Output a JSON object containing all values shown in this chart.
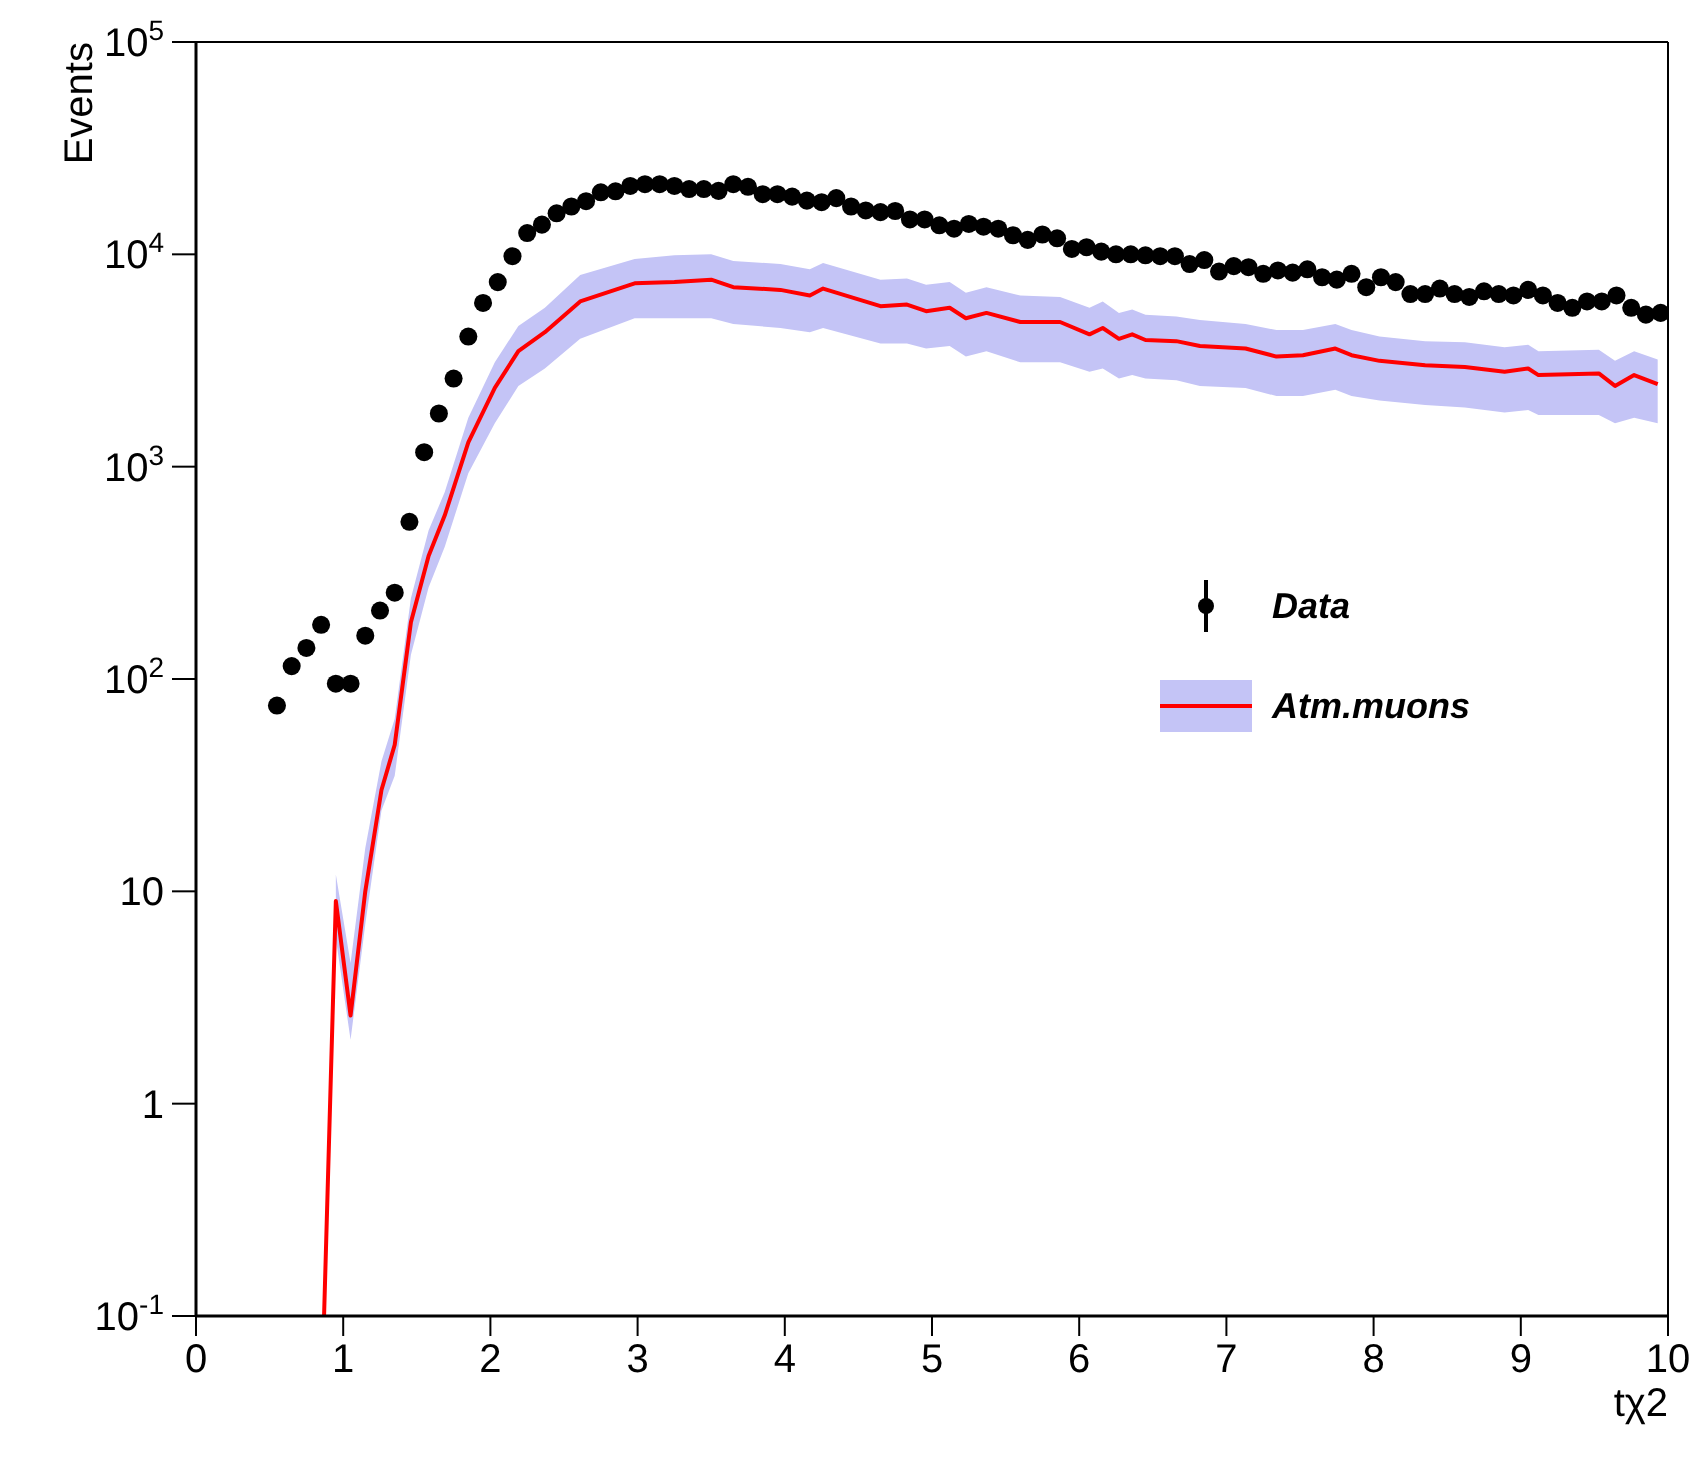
{
  "chart_data": {
    "type": "scatter",
    "xlabel": "tχ2",
    "ylabel": "Events",
    "log": true,
    "legend": "right",
    "xlim": [
      0,
      10
    ],
    "xticks": [
      0,
      1,
      2,
      3,
      4,
      5,
      6,
      7,
      8,
      9,
      10
    ],
    "ylim": [
      0.1,
      100000
    ],
    "yticks": [
      {
        "value": 0.1,
        "label": "10$^{-1}$"
      },
      1,
      10,
      {
        "value": 100,
        "label": "10$^{2}$"
      },
      {
        "value": 1000,
        "label": "10$^{3}$"
      },
      {
        "value": 10000,
        "label": "10$^{4}$"
      },
      {
        "value": 100000,
        "label": "10$^{5}$"
      }
    ],
    "series": [
      {
        "name": "Data",
        "marker": "circle",
        "color": "#000000",
        "x": [
          0.55,
          0.65,
          0.75,
          0.85,
          0.95,
          1.05,
          1.15,
          1.25,
          1.35,
          1.45,
          1.55,
          1.65,
          1.75,
          1.85,
          1.95,
          2.05,
          2.15,
          2.25,
          2.35,
          2.45,
          2.55,
          2.65,
          2.75,
          2.85,
          2.95,
          3.05,
          3.15,
          3.25,
          3.35,
          3.45,
          3.55,
          3.65,
          3.75,
          3.85,
          3.95,
          4.05,
          4.15,
          4.25,
          4.35,
          4.45,
          4.55,
          4.65,
          4.75,
          4.85,
          4.95,
          5.05,
          5.15,
          5.25,
          5.35,
          5.45,
          5.55,
          5.65,
          5.75,
          5.85,
          5.95,
          6.05,
          6.15,
          6.25,
          6.35,
          6.45,
          6.55,
          6.65,
          6.75,
          6.85,
          6.95,
          7.05,
          7.15,
          7.25,
          7.35,
          7.45,
          7.55,
          7.65,
          7.75,
          7.85,
          7.95,
          8.05,
          8.15,
          8.25,
          8.35,
          8.45,
          8.55,
          8.65,
          8.75,
          8.85,
          8.95,
          9.05,
          9.15,
          9.25,
          9.35,
          9.45,
          9.55,
          9.65,
          9.75,
          9.85,
          9.95
        ],
        "values": [
          75,
          115,
          140,
          180,
          95,
          95,
          160,
          210,
          255,
          550,
          1170,
          1780,
          2600,
          4100,
          5900,
          7400,
          9800,
          12600,
          13800,
          15600,
          16800,
          17800,
          19600,
          19800,
          21000,
          21400,
          21400,
          21000,
          20300,
          20300,
          19900,
          21400,
          20800,
          19200,
          19200,
          18700,
          17900,
          17600,
          18400,
          16800,
          16100,
          15800,
          16000,
          14600,
          14600,
          13700,
          13200,
          13900,
          13500,
          13200,
          12300,
          11700,
          12400,
          11900,
          10600,
          10800,
          10300,
          10000,
          10000,
          9900,
          9800,
          9800,
          9000,
          9400,
          8300,
          8800,
          8700,
          8100,
          8400,
          8200,
          8500,
          7800,
          7600,
          8100,
          7000,
          7800,
          7400,
          6500,
          6500,
          6900,
          6500,
          6300,
          6700,
          6500,
          6400,
          6800,
          6400,
          5900,
          5600,
          6000,
          6000,
          6400,
          5600,
          5200,
          5300
        ]
      },
      {
        "name": "Atm.muons",
        "type": "line",
        "color": "#ff0000",
        "x": [
          0.87,
          0.95,
          1.05,
          1.15,
          1.26,
          1.35,
          1.46,
          1.58,
          1.69,
          1.85,
          2.03,
          2.19,
          2.37,
          2.61,
          2.98,
          3.25,
          3.5,
          3.65,
          3.97,
          4.17,
          4.26,
          4.65,
          4.83,
          4.96,
          5.12,
          5.23,
          5.37,
          5.6,
          5.87,
          6.07,
          6.16,
          6.27,
          6.36,
          6.45,
          6.66,
          6.82,
          7.13,
          7.34,
          7.52,
          7.74,
          7.85,
          8.04,
          8.35,
          8.62,
          8.89,
          9.05,
          9.12,
          9.53,
          9.64,
          9.77,
          9.93
        ],
        "values": [
          0.1,
          9,
          2.6,
          10,
          30,
          49,
          185,
          380,
          590,
          1300,
          2350,
          3500,
          4300,
          6000,
          7300,
          7400,
          7600,
          7000,
          6800,
          6400,
          6900,
          5700,
          5800,
          5400,
          5600,
          5000,
          5300,
          4800,
          4800,
          4200,
          4500,
          4000,
          4200,
          3950,
          3900,
          3700,
          3600,
          3300,
          3350,
          3600,
          3350,
          3150,
          3000,
          2950,
          2800,
          2900,
          2700,
          2750,
          2400,
          2700,
          2450
        ],
        "lower": [
          null,
          6,
          2,
          7,
          24,
          35,
          130,
          270,
          420,
          930,
          1600,
          2400,
          2900,
          4000,
          5000,
          5000,
          5000,
          4700,
          4500,
          4300,
          4500,
          3800,
          3800,
          3600,
          3700,
          3300,
          3500,
          3100,
          3100,
          2800,
          2900,
          2600,
          2700,
          2600,
          2550,
          2400,
          2350,
          2150,
          2150,
          2300,
          2150,
          2050,
          1950,
          1900,
          1800,
          1850,
          1750,
          1750,
          1600,
          1700,
          1600
        ],
        "upper": [
          null,
          12,
          4.6,
          16,
          41,
          65,
          240,
          500,
          760,
          1700,
          3100,
          4600,
          5600,
          8000,
          9500,
          9900,
          10000,
          9300,
          9000,
          8500,
          9100,
          7600,
          7700,
          7200,
          7400,
          6600,
          7000,
          6400,
          6300,
          5600,
          6000,
          5300,
          5500,
          5200,
          5100,
          4900,
          4700,
          4400,
          4400,
          4700,
          4400,
          4100,
          3900,
          3850,
          3650,
          3750,
          3500,
          3550,
          3150,
          3500,
          3200
        ]
      }
    ]
  }
}
